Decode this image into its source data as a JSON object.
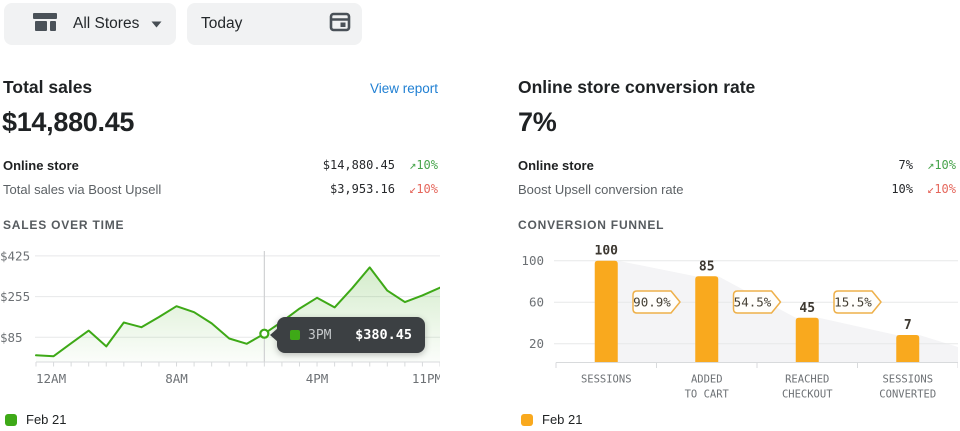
{
  "topbar": {
    "store_picker": {
      "label": "All Stores"
    },
    "date_picker": {
      "label": "Today"
    }
  },
  "total_sales_card": {
    "title": "Total sales",
    "view_report_label": "View report",
    "headline_value": "$14,880.45",
    "rows": [
      {
        "label": "Online store",
        "value": "$14,880.45",
        "arrow": "↗",
        "delta": "10%",
        "trend": "up"
      },
      {
        "label": "Total sales via Boost Upsell",
        "value": "$3,953.16",
        "arrow": "↙",
        "delta": "10%",
        "trend": "down"
      }
    ],
    "section_label": "SALES OVER TIME",
    "legend_label": "Feb 21"
  },
  "conversion_card": {
    "title": "Online store conversion rate",
    "headline_value": "7%",
    "rows": [
      {
        "label": "Online store",
        "value": "7%",
        "arrow": "↗",
        "delta": "10%",
        "trend": "up"
      },
      {
        "label": "Boost Upsell conversion rate",
        "value": "10%",
        "arrow": "↙",
        "delta": "10%",
        "trend": "down"
      }
    ],
    "section_label": "CONVERSION FUNNEL",
    "legend_label": "Feb 21"
  },
  "chart_data": [
    {
      "id": "sales-over-time",
      "type": "line",
      "title": "Sales over time",
      "x_unit": "hour of day",
      "series": [
        {
          "name": "Feb 21",
          "color": "#3ea917",
          "values": [
            10,
            6,
            60,
            113,
            47,
            147,
            127,
            170,
            215,
            190,
            143,
            80,
            58,
            100,
            150,
            205,
            250,
            210,
            290,
            377,
            280,
            232,
            260,
            292
          ]
        }
      ],
      "x_tick_labels": [
        {
          "hour": 0,
          "label": "12AM"
        },
        {
          "hour": 8,
          "label": "8AM"
        },
        {
          "hour": 16,
          "label": "4PM"
        },
        {
          "hour": 23,
          "label": "11PM"
        }
      ],
      "y_ticks": [
        {
          "value": 85,
          "label": "$85"
        },
        {
          "value": 255,
          "label": "$255"
        },
        {
          "value": 425,
          "label": "$425"
        }
      ],
      "grid": true,
      "tooltip": {
        "time": "3PM",
        "value": "$380.45",
        "anchor_hour": 13,
        "anchor_value": 100,
        "series_color": "#3ea917"
      }
    },
    {
      "id": "conversion-funnel",
      "type": "bar",
      "title": "Conversion funnel",
      "categories": [
        [
          "SESSIONS"
        ],
        [
          "ADDED",
          "TO CART"
        ],
        [
          "REACHED",
          "CHECKOUT"
        ],
        [
          "SESSIONS",
          "CONVERTED"
        ]
      ],
      "values": [
        100,
        85,
        45,
        7
      ],
      "step_percentages": [
        "90.9%",
        "54.5%",
        "15.5%"
      ],
      "y_ticks": [
        {
          "value": 20,
          "label": "20"
        },
        {
          "value": 60,
          "label": "60"
        },
        {
          "value": 100,
          "label": "100"
        }
      ],
      "grid": true,
      "bar_color": "#f9a91e",
      "badge_border_color": "#eeb04a",
      "funnel_fill": "#f4f4f6",
      "series_name": "Feb 21"
    }
  ],
  "colors": {
    "link_blue": "#2180d3",
    "positive_green": "#47a44b",
    "negative_red": "#e5675c",
    "line_green": "#3ea917",
    "bar_orange": "#f9a91e",
    "tooltip_bg": "#3c4043"
  }
}
